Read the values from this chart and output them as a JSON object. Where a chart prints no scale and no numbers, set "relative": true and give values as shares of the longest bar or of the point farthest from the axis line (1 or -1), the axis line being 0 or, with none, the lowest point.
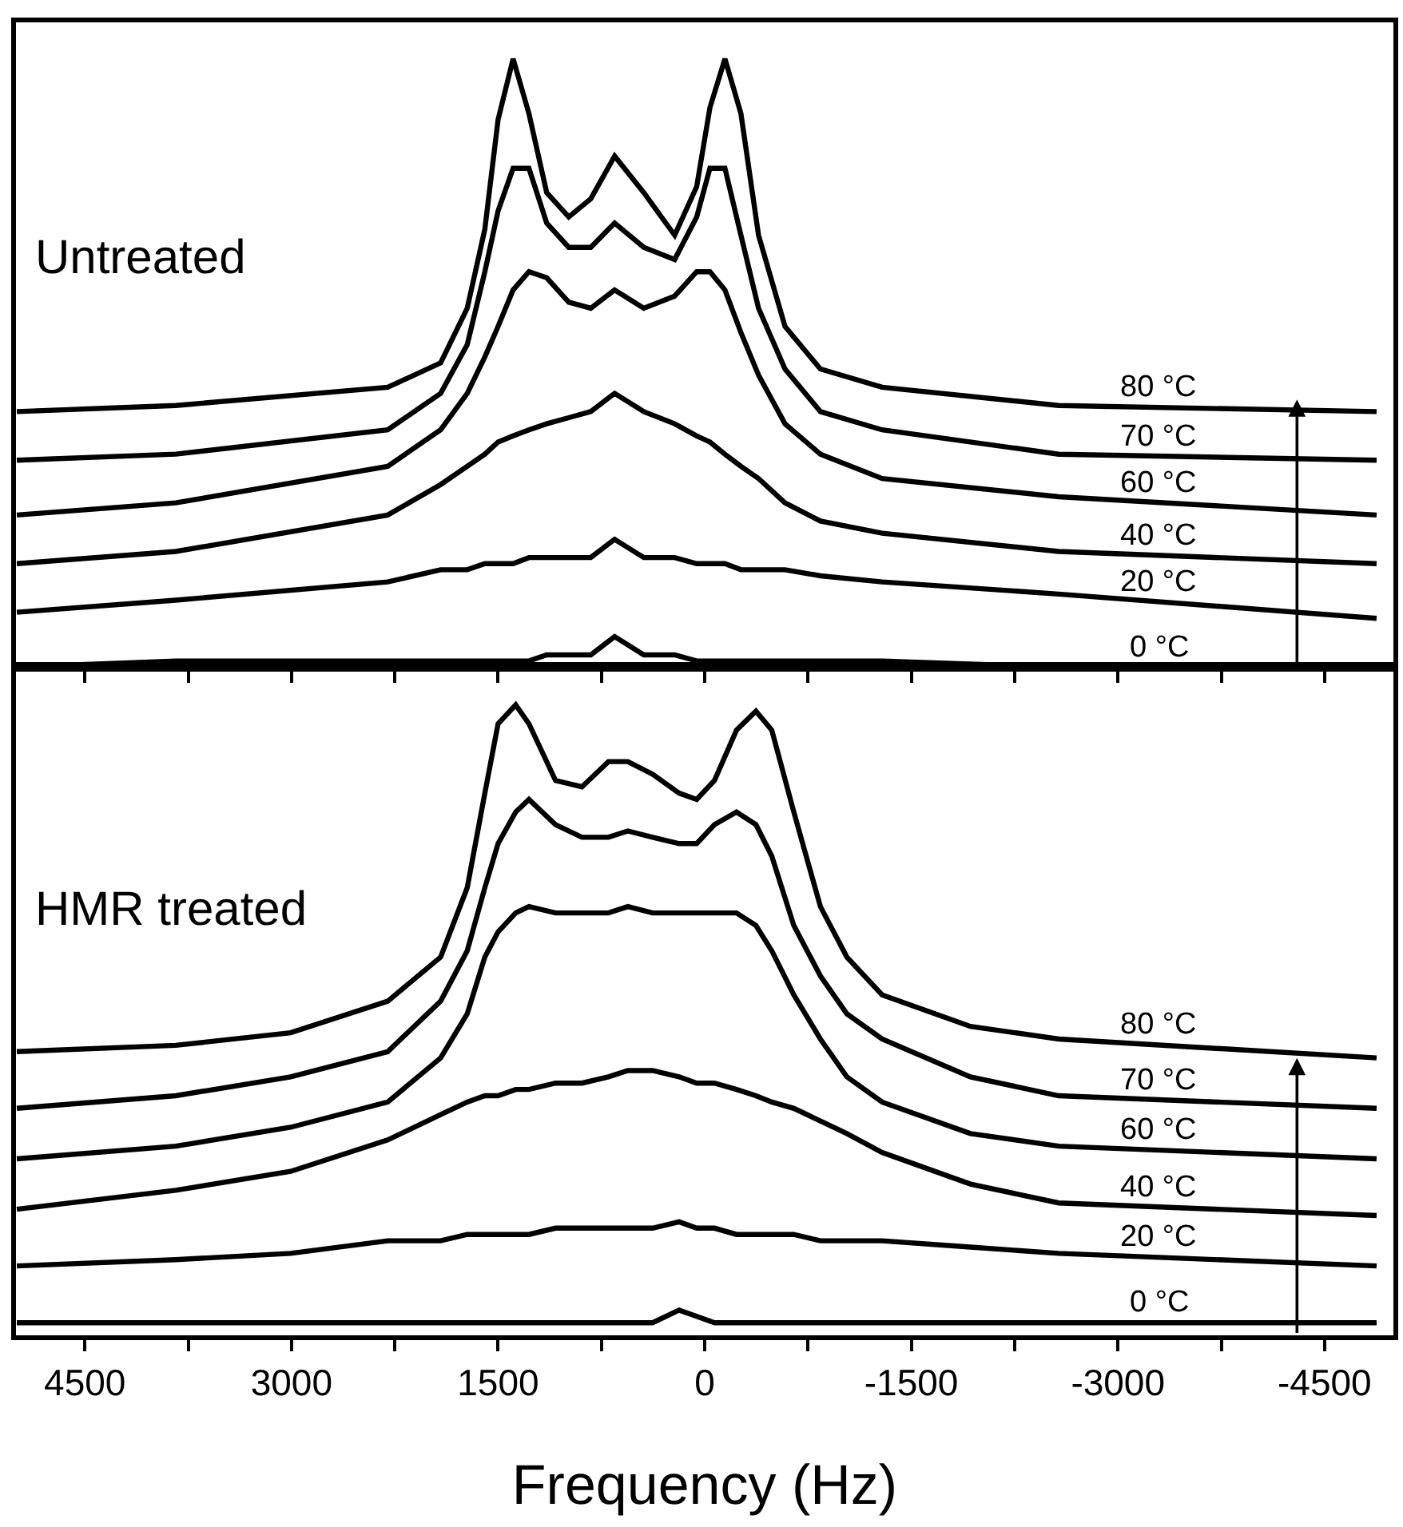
{
  "chart_data": [
    {
      "type": "line",
      "relative": true,
      "annotations": [
        "Untreated"
      ],
      "xlim": [
        5000,
        -5000
      ],
      "tick_labels": false,
      "grid": false,
      "legend": false,
      "marker": "none",
      "line_style": "solid",
      "xticks": [
        {
          "value": 4500,
          "label": null
        },
        {
          "value": 3750,
          "label": null
        },
        {
          "value": 3000,
          "label": null
        },
        {
          "value": 2250,
          "label": null
        },
        {
          "value": 1500,
          "label": null
        },
        {
          "value": 750,
          "label": null
        },
        {
          "value": 0,
          "label": null
        },
        {
          "value": -750,
          "label": null
        },
        {
          "value": -1500,
          "label": null
        },
        {
          "value": -2250,
          "label": null
        },
        {
          "value": -3000,
          "label": null
        },
        {
          "value": -3750,
          "label": null
        },
        {
          "value": -4500,
          "label": null
        }
      ],
      "x": [
        4994,
        3840,
        2301,
        1917,
        1724,
        1596,
        1500,
        1391,
        1276,
        1147,
        987,
        827,
        654,
        442,
        218,
        58,
        -38,
        -147,
        -263,
        -391,
        -583,
        -840,
        -1288,
        -2570,
        -4878
      ],
      "series": [
        {
          "name": "80 °C",
          "color": "#000000",
          "values": [
            0.42,
            0.43,
            0.46,
            0.5,
            0.59,
            0.72,
            0.9,
            1.0,
            0.91,
            0.78,
            0.74,
            0.77,
            0.84,
            0.78,
            0.71,
            0.79,
            0.92,
            1.0,
            0.91,
            0.71,
            0.56,
            0.49,
            0.46,
            0.43,
            0.42
          ]
        },
        {
          "name": "70 °C",
          "color": "#000000",
          "values": [
            0.34,
            0.35,
            0.39,
            0.45,
            0.53,
            0.65,
            0.75,
            0.82,
            0.82,
            0.73,
            0.69,
            0.69,
            0.73,
            0.69,
            0.67,
            0.74,
            0.82,
            0.82,
            0.71,
            0.59,
            0.49,
            0.42,
            0.39,
            0.35,
            0.34
          ]
        },
        {
          "name": "60 °C",
          "color": "#000000",
          "values": [
            0.25,
            0.27,
            0.33,
            0.39,
            0.45,
            0.51,
            0.56,
            0.62,
            0.65,
            0.64,
            0.6,
            0.59,
            0.62,
            0.59,
            0.61,
            0.65,
            0.65,
            0.62,
            0.55,
            0.48,
            0.4,
            0.35,
            0.31,
            0.28,
            0.25
          ]
        },
        {
          "name": "40 °C",
          "color": "#000000",
          "values": [
            0.17,
            0.19,
            0.25,
            0.3,
            0.33,
            0.35,
            0.37,
            0.38,
            0.39,
            0.4,
            0.41,
            0.42,
            0.45,
            0.42,
            0.4,
            0.38,
            0.37,
            0.35,
            0.33,
            0.31,
            0.27,
            0.24,
            0.22,
            0.19,
            0.17
          ]
        },
        {
          "name": "20 °C",
          "color": "#000000",
          "values": [
            0.09,
            0.11,
            0.14,
            0.16,
            0.16,
            0.17,
            0.17,
            0.17,
            0.18,
            0.18,
            0.18,
            0.18,
            0.21,
            0.18,
            0.18,
            0.17,
            0.17,
            0.17,
            0.16,
            0.16,
            0.16,
            0.15,
            0.14,
            0.12,
            0.08
          ]
        },
        {
          "name": "0 °C",
          "color": "#000000",
          "values": [
            0.0,
            0.01,
            0.01,
            0.01,
            0.01,
            0.01,
            0.01,
            0.01,
            0.01,
            0.02,
            0.02,
            0.02,
            0.05,
            0.02,
            0.02,
            0.01,
            0.01,
            0.01,
            0.01,
            0.01,
            0.01,
            0.01,
            0.01,
            0.0,
            0.0
          ]
        }
      ]
    },
    {
      "type": "line",
      "relative": true,
      "annotations": [
        "HMR treated"
      ],
      "xlim": [
        5000,
        -5000
      ],
      "tick_labels": "x",
      "grid": false,
      "legend": false,
      "marker": "none",
      "line_style": "solid",
      "xlabel": "Frequency (Hz)",
      "xticks": [
        4500,
        {
          "value": 3750,
          "label": null
        },
        3000,
        {
          "value": 2250,
          "label": null
        },
        1500,
        {
          "value": 750,
          "label": null
        },
        0,
        {
          "value": -750,
          "label": null
        },
        -1500,
        {
          "value": -2250,
          "label": null
        },
        -3000,
        {
          "value": -3750,
          "label": null
        },
        -4500
      ],
      "x": [
        4994,
        3840,
        3006,
        2301,
        1917,
        1724,
        1596,
        1500,
        1372,
        1276,
        1083,
        891,
        699,
        558,
        378,
        186,
        58,
        -71,
        -231,
        -372,
        -487,
        -647,
        -840,
        -1032,
        -1288,
        -1929,
        -2570,
        -4878
      ],
      "series": [
        {
          "name": "80 °C",
          "color": "#000000",
          "values": [
            0.45,
            0.46,
            0.48,
            0.53,
            0.6,
            0.71,
            0.86,
            0.97,
            1.0,
            0.97,
            0.88,
            0.87,
            0.91,
            0.91,
            0.89,
            0.86,
            0.85,
            0.88,
            0.96,
            0.99,
            0.96,
            0.83,
            0.68,
            0.6,
            0.54,
            0.49,
            0.47,
            0.44
          ]
        },
        {
          "name": "70 °C",
          "color": "#000000",
          "values": [
            0.36,
            0.38,
            0.41,
            0.45,
            0.53,
            0.61,
            0.71,
            0.78,
            0.83,
            0.85,
            0.81,
            0.79,
            0.79,
            0.8,
            0.79,
            0.78,
            0.78,
            0.81,
            0.83,
            0.81,
            0.76,
            0.65,
            0.57,
            0.51,
            0.47,
            0.41,
            0.38,
            0.36
          ]
        },
        {
          "name": "60 °C",
          "color": "#000000",
          "values": [
            0.28,
            0.3,
            0.33,
            0.37,
            0.44,
            0.51,
            0.6,
            0.64,
            0.67,
            0.68,
            0.67,
            0.67,
            0.67,
            0.68,
            0.67,
            0.67,
            0.67,
            0.67,
            0.67,
            0.65,
            0.61,
            0.54,
            0.47,
            0.41,
            0.37,
            0.32,
            0.3,
            0.28
          ]
        },
        {
          "name": "40 °C",
          "color": "#000000",
          "values": [
            0.2,
            0.23,
            0.26,
            0.31,
            0.35,
            0.37,
            0.38,
            0.38,
            0.39,
            0.39,
            0.4,
            0.4,
            0.41,
            0.42,
            0.42,
            0.41,
            0.4,
            0.4,
            0.39,
            0.38,
            0.37,
            0.36,
            0.34,
            0.32,
            0.29,
            0.24,
            0.21,
            0.19
          ]
        },
        {
          "name": "20 °C",
          "color": "#000000",
          "values": [
            0.11,
            0.12,
            0.13,
            0.15,
            0.15,
            0.16,
            0.16,
            0.16,
            0.16,
            0.16,
            0.17,
            0.17,
            0.17,
            0.17,
            0.17,
            0.18,
            0.17,
            0.17,
            0.16,
            0.16,
            0.16,
            0.16,
            0.15,
            0.15,
            0.15,
            0.14,
            0.13,
            0.11
          ]
        },
        {
          "name": "0 °C",
          "color": "#000000",
          "values": [
            0.02,
            0.02,
            0.02,
            0.02,
            0.02,
            0.02,
            0.02,
            0.02,
            0.02,
            0.02,
            0.02,
            0.02,
            0.02,
            0.02,
            0.02,
            0.04,
            0.03,
            0.02,
            0.02,
            0.02,
            0.02,
            0.02,
            0.02,
            0.02,
            0.02,
            0.02,
            0.02,
            0.02
          ]
        }
      ]
    }
  ]
}
